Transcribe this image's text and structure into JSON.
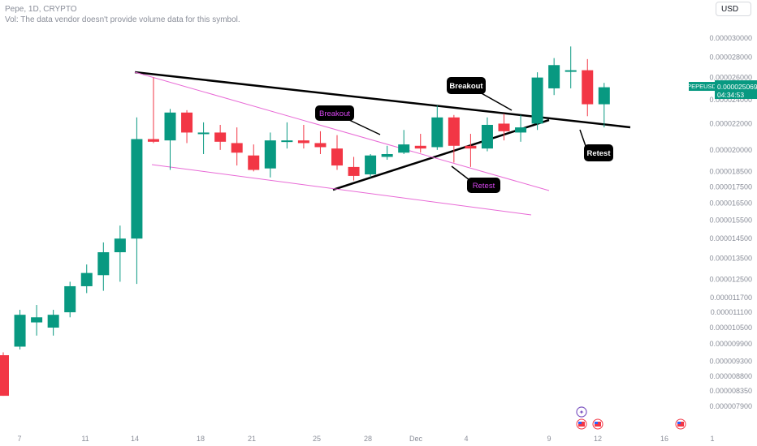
{
  "header": {
    "symbol_line": "Pepe, 1D, CRYPTO",
    "volume_note": "Vol: The data vendor doesn't provide volume data for this symbol."
  },
  "currency_button": "USD",
  "colors": {
    "up": "#089981",
    "down": "#f23645",
    "line": "#000000",
    "pink": "#e86ad6",
    "annotation_text_pink": "#d846f0"
  },
  "chart_data": {
    "type": "candlestick",
    "y_scale": "log",
    "ylim": [
      7.4e-06,
      3.2e-05
    ],
    "y_ticks": [
      "0.000030000",
      "0.000028000",
      "0.000026000",
      "0.000024000",
      "0.000022000",
      "0.000020000",
      "0.000018500",
      "0.000017500",
      "0.000016500",
      "0.000015500",
      "0.000014500",
      "0.000013500",
      "0.000012500",
      "0.000011700",
      "0.000011100",
      "0.000010500",
      "0.000009900",
      "0.000009300",
      "0.000008800",
      "0.000008350",
      "0.000007900"
    ],
    "x_ticks": [
      "7",
      "11",
      "14",
      "18",
      "21",
      "25",
      "28",
      "Dec",
      "4",
      "9",
      "12",
      "16",
      "1"
    ],
    "price_label": {
      "symbol": "PEPEUSD",
      "price": "0.000025069",
      "countdown": "04:34:53"
    },
    "candles": [
      {
        "o": 9.5e-06,
        "h": 9.6e-06,
        "l": 8.2e-06,
        "c": 8.2e-06
      },
      {
        "o": 9.8e-06,
        "h": 1.12e-05,
        "l": 9.7e-06,
        "c": 1.1e-05
      },
      {
        "o": 1.07e-05,
        "h": 1.14e-05,
        "l": 1.02e-05,
        "c": 1.09e-05
      },
      {
        "o": 1.05e-05,
        "h": 1.12e-05,
        "l": 1.02e-05,
        "c": 1.1e-05
      },
      {
        "o": 1.11e-05,
        "h": 1.24e-05,
        "l": 1.09e-05,
        "c": 1.22e-05
      },
      {
        "o": 1.22e-05,
        "h": 1.32e-05,
        "l": 1.19e-05,
        "c": 1.28e-05
      },
      {
        "o": 1.27e-05,
        "h": 1.43e-05,
        "l": 1.2e-05,
        "c": 1.38e-05
      },
      {
        "o": 1.38e-05,
        "h": 1.52e-05,
        "l": 1.24e-05,
        "c": 1.45e-05
      },
      {
        "o": 1.45e-05,
        "h": 2.25e-05,
        "l": 1.23e-05,
        "c": 2.08e-05
      },
      {
        "o": 2.08e-05,
        "h": 2.6e-05,
        "l": 2.05e-05,
        "c": 2.06e-05
      },
      {
        "o": 2.07e-05,
        "h": 2.32e-05,
        "l": 1.86e-05,
        "c": 2.29e-05
      },
      {
        "o": 2.29e-05,
        "h": 2.31e-05,
        "l": 2.05e-05,
        "c": 2.13e-05
      },
      {
        "o": 2.13e-05,
        "h": 2.21e-05,
        "l": 1.97e-05,
        "c": 2.13e-05
      },
      {
        "o": 2.13e-05,
        "h": 2.19e-05,
        "l": 2e-05,
        "c": 2.06e-05
      },
      {
        "o": 2.05e-05,
        "h": 2.17e-05,
        "l": 1.89e-05,
        "c": 1.98e-05
      },
      {
        "o": 1.96e-05,
        "h": 2.04e-05,
        "l": 1.85e-05,
        "c": 1.86e-05
      },
      {
        "o": 1.87e-05,
        "h": 2.13e-05,
        "l": 1.81e-05,
        "c": 2.07e-05
      },
      {
        "o": 2.07e-05,
        "h": 2.21e-05,
        "l": 2.01e-05,
        "c": 2.07e-05
      },
      {
        "o": 2.07e-05,
        "h": 2.19e-05,
        "l": 2.01e-05,
        "c": 2.05e-05
      },
      {
        "o": 2.05e-05,
        "h": 2.14e-05,
        "l": 1.97e-05,
        "c": 2.02e-05
      },
      {
        "o": 2.01e-05,
        "h": 2.11e-05,
        "l": 1.86e-05,
        "c": 1.89e-05
      },
      {
        "o": 1.88e-05,
        "h": 1.95e-05,
        "l": 1.79e-05,
        "c": 1.82e-05
      },
      {
        "o": 1.83e-05,
        "h": 1.97e-05,
        "l": 1.81e-05,
        "c": 1.96e-05
      },
      {
        "o": 1.95e-05,
        "h": 2.03e-05,
        "l": 1.93e-05,
        "c": 1.97e-05
      },
      {
        "o": 1.98e-05,
        "h": 2.15e-05,
        "l": 1.97e-05,
        "c": 2.04e-05
      },
      {
        "o": 2.03e-05,
        "h": 2.12e-05,
        "l": 1.98e-05,
        "c": 2.01e-05
      },
      {
        "o": 2.02e-05,
        "h": 2.35e-05,
        "l": 2e-05,
        "c": 2.25e-05
      },
      {
        "o": 2.25e-05,
        "h": 2.27e-05,
        "l": 1.91e-05,
        "c": 2.03e-05
      },
      {
        "o": 2.03e-05,
        "h": 2.12e-05,
        "l": 1.88e-05,
        "c": 2.01e-05
      },
      {
        "o": 2.01e-05,
        "h": 2.25e-05,
        "l": 1.99e-05,
        "c": 2.19e-05
      },
      {
        "o": 2.2e-05,
        "h": 2.28e-05,
        "l": 2.07e-05,
        "c": 2.14e-05
      },
      {
        "o": 2.13e-05,
        "h": 2.27e-05,
        "l": 2.06e-05,
        "c": 2.17e-05
      },
      {
        "o": 2.2e-05,
        "h": 2.65e-05,
        "l": 2.15e-05,
        "c": 2.6e-05
      },
      {
        "o": 2.5e-05,
        "h": 2.79e-05,
        "l": 2.44e-05,
        "c": 2.72e-05
      },
      {
        "o": 2.67e-05,
        "h": 2.91e-05,
        "l": 2.5e-05,
        "c": 2.67e-05
      },
      {
        "o": 2.67e-05,
        "h": 2.78e-05,
        "l": 2.26e-05,
        "c": 2.36e-05
      },
      {
        "o": 2.36e-05,
        "h": 2.55e-05,
        "l": 2.17e-05,
        "c": 2.51e-05
      }
    ],
    "annotations": [
      {
        "text": "Breakout",
        "style": "pink"
      },
      {
        "text": "Retest",
        "style": "pink"
      },
      {
        "text": "Breakout",
        "style": "white"
      },
      {
        "text": "Retest",
        "style": "white"
      }
    ]
  }
}
